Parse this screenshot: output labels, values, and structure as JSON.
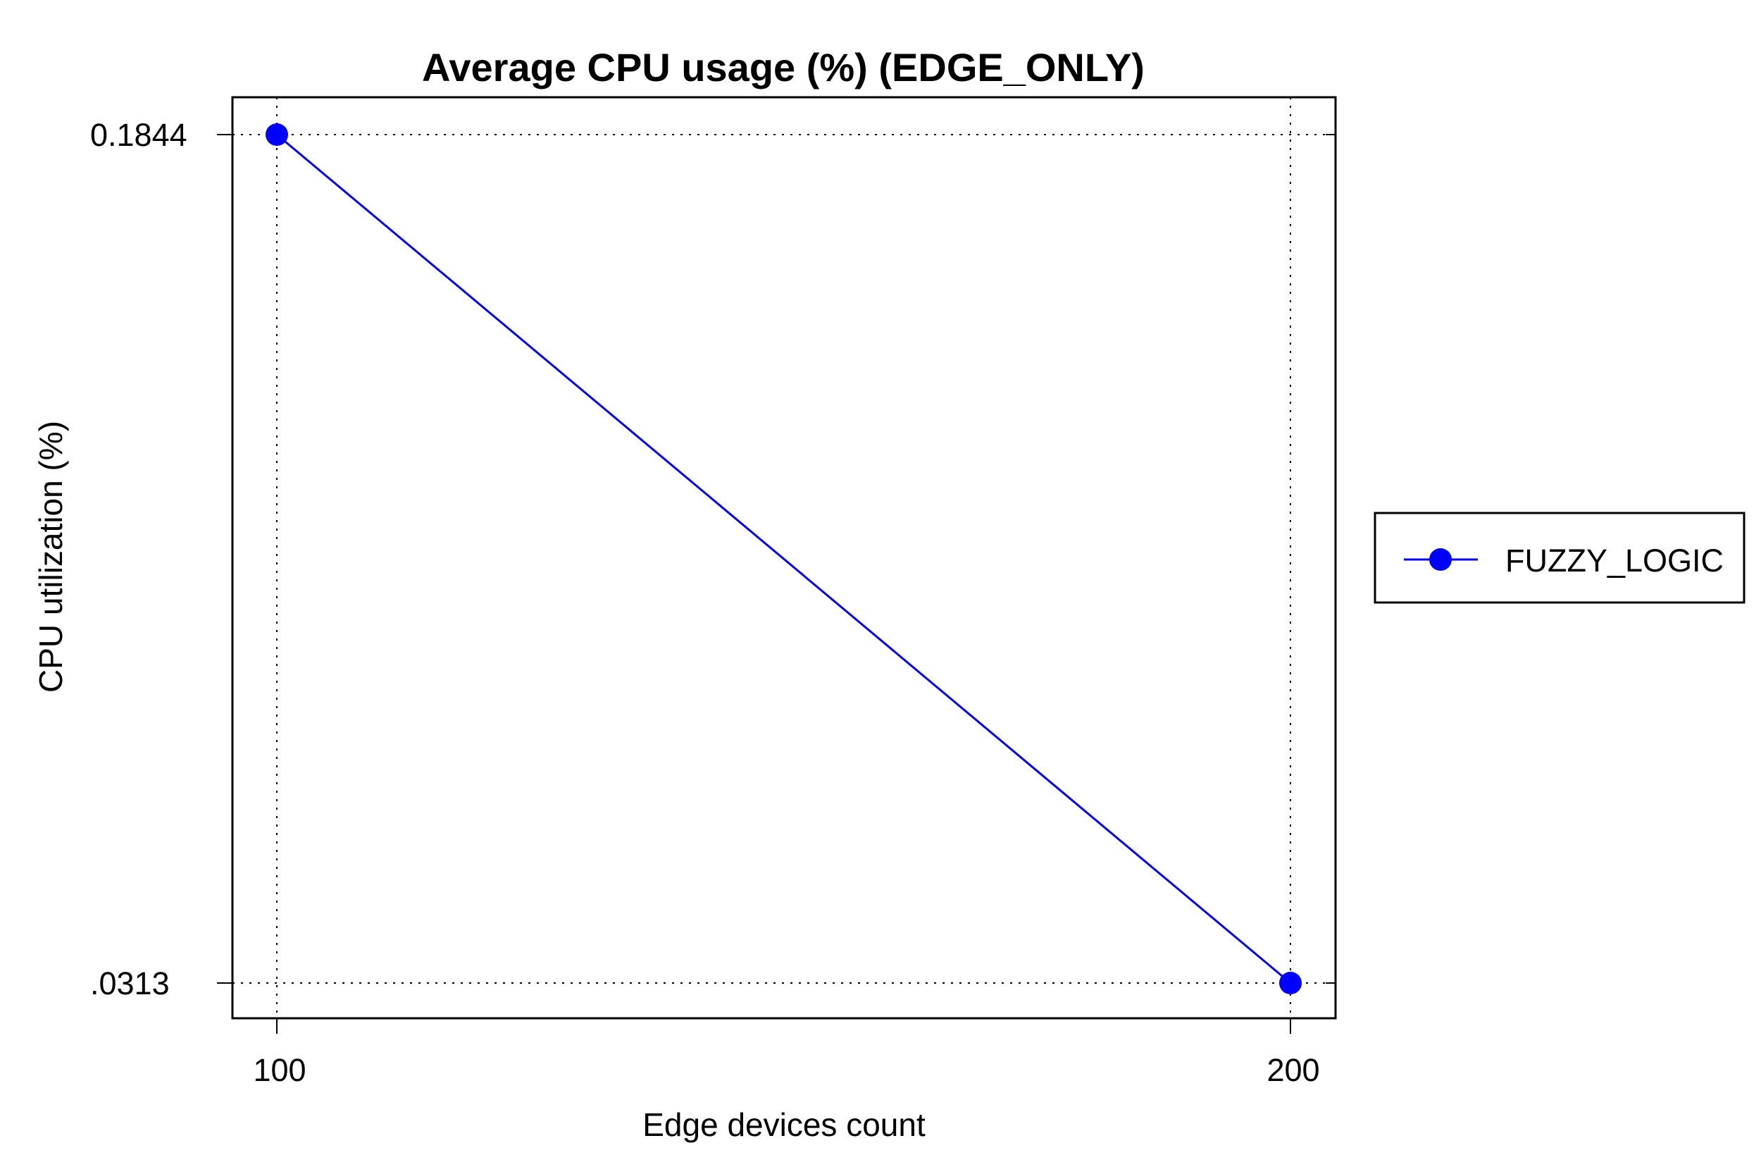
{
  "chart_data": {
    "type": "line",
    "title": "Average CPU usage (%) (EDGE_ONLY)",
    "xlabel": "Edge devices count",
    "ylabel": "CPU utilization (%)",
    "x": [
      100,
      200
    ],
    "x_tick_labels": [
      "100",
      "200"
    ],
    "y_ticks": [
      0.1844,
      0.0313
    ],
    "y_tick_labels": [
      "0.1844",
      ".0313"
    ],
    "series": [
      {
        "name": "FUZZY_LOGIC",
        "values": [
          0.1844,
          0.0313
        ],
        "color": "#0000ff",
        "marker": "circle"
      }
    ],
    "grid": true,
    "grid_style": "dotted",
    "legend_position": "right"
  }
}
